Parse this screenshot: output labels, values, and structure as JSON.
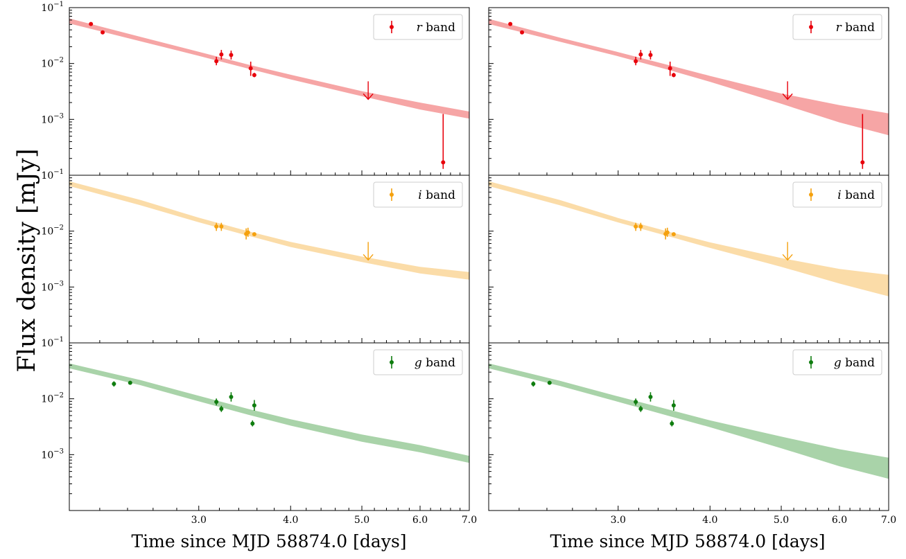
{
  "chart_data": {
    "type": "scatter",
    "ylabel": "Flux density [mJy]",
    "xlabel": "Time since MJD 58874.0 [days]",
    "x_scale": "log",
    "y_scale": "log",
    "xlim": [
      2.0,
      7.0
    ],
    "ylim": [
      0.0001,
      0.1
    ],
    "x_ticks": [
      3.0,
      4.0,
      5.0,
      6.0,
      7.0
    ],
    "x_tick_labels": [
      "3.0",
      "4.0",
      "5.0",
      "6.0",
      "7.0"
    ],
    "y_ticks": [
      {
        "value": 0.1,
        "base": "10",
        "exp": "−1"
      },
      {
        "value": 0.01,
        "base": "10",
        "exp": "−2"
      },
      {
        "value": 0.001,
        "base": "10",
        "exp": "−3"
      }
    ],
    "legend_position": "top-right",
    "colors": {
      "r": "#e8000b",
      "i": "#f5a10e",
      "g": "#0f7d0f",
      "r_band": "#f6a5a5",
      "i_band": "#fbdca8",
      "g_band": "#a9d3a9"
    },
    "columns": [
      {
        "rows": [
          {
            "band": "r",
            "legend": {
              "italic": "r",
              "rest": " band"
            },
            "points": [
              {
                "x": 2.14,
                "y": 0.051,
                "lo": 0.048,
                "hi": 0.054
              },
              {
                "x": 2.22,
                "y": 0.036,
                "lo": 0.034,
                "hi": 0.038
              },
              {
                "x": 3.17,
                "y": 0.011,
                "lo": 0.0093,
                "hi": 0.0132
              },
              {
                "x": 3.22,
                "y": 0.0145,
                "lo": 0.0118,
                "hi": 0.0175
              },
              {
                "x": 3.32,
                "y": 0.0142,
                "lo": 0.0118,
                "hi": 0.017
              },
              {
                "x": 3.53,
                "y": 0.0082,
                "lo": 0.006,
                "hi": 0.0108
              },
              {
                "x": 3.57,
                "y": 0.0062,
                "lo": 0.0057,
                "hi": 0.0068
              },
              {
                "x": 6.45,
                "y": 0.00017,
                "lo": 0.00013,
                "hi": 0.00125
              }
            ],
            "upper_limits": [
              {
                "x": 5.1,
                "y": 0.0048
              }
            ],
            "model_band": [
              {
                "x": 2.0,
                "lo": 0.052,
                "hi": 0.064
              },
              {
                "x": 2.5,
                "lo": 0.025,
                "hi": 0.03
              },
              {
                "x": 3.0,
                "lo": 0.0137,
                "hi": 0.0162
              },
              {
                "x": 3.5,
                "lo": 0.0081,
                "hi": 0.0096
              },
              {
                "x": 4.0,
                "lo": 0.0052,
                "hi": 0.0063
              },
              {
                "x": 5.0,
                "lo": 0.0026,
                "hi": 0.0032
              },
              {
                "x": 6.0,
                "lo": 0.0015,
                "hi": 0.002
              },
              {
                "x": 7.0,
                "lo": 0.00103,
                "hi": 0.00138
              }
            ]
          },
          {
            "band": "i",
            "legend": {
              "italic": "i",
              "rest": " band"
            },
            "points": [
              {
                "x": 3.17,
                "y": 0.0121,
                "lo": 0.0101,
                "hi": 0.0141
              },
              {
                "x": 3.22,
                "y": 0.0121,
                "lo": 0.0101,
                "hi": 0.0141
              },
              {
                "x": 3.48,
                "y": 0.0089,
                "lo": 0.0071,
                "hi": 0.0112
              },
              {
                "x": 3.5,
                "y": 0.0095,
                "lo": 0.0079,
                "hi": 0.0115
              },
              {
                "x": 3.57,
                "y": 0.0088,
                "lo": 0.0083,
                "hi": 0.0093
              }
            ],
            "upper_limits": [
              {
                "x": 5.1,
                "y": 0.0064
              }
            ],
            "model_band": [
              {
                "x": 2.0,
                "lo": 0.064,
                "hi": 0.078
              },
              {
                "x": 2.5,
                "lo": 0.029,
                "hi": 0.036
              },
              {
                "x": 3.0,
                "lo": 0.0144,
                "hi": 0.0174
              },
              {
                "x": 3.5,
                "lo": 0.0083,
                "hi": 0.01
              },
              {
                "x": 4.0,
                "lo": 0.0052,
                "hi": 0.0064
              },
              {
                "x": 5.0,
                "lo": 0.0028,
                "hi": 0.0035
              },
              {
                "x": 6.0,
                "lo": 0.00175,
                "hi": 0.0023
              },
              {
                "x": 7.0,
                "lo": 0.00135,
                "hi": 0.00185
              }
            ]
          },
          {
            "band": "g",
            "legend": {
              "italic": "g",
              "rest": " band"
            },
            "points": [
              {
                "x": 2.3,
                "y": 0.0185,
                "lo": 0.0165,
                "hi": 0.0205
              },
              {
                "x": 2.42,
                "y": 0.0193,
                "lo": 0.0178,
                "hi": 0.0209
              },
              {
                "x": 3.17,
                "y": 0.0088,
                "lo": 0.0076,
                "hi": 0.0101
              },
              {
                "x": 3.22,
                "y": 0.0066,
                "lo": 0.0058,
                "hi": 0.0075
              },
              {
                "x": 3.32,
                "y": 0.0108,
                "lo": 0.0089,
                "hi": 0.0131
              },
              {
                "x": 3.55,
                "y": 0.0036,
                "lo": 0.0032,
                "hi": 0.0041
              },
              {
                "x": 3.57,
                "y": 0.0076,
                "lo": 0.0061,
                "hi": 0.0095
              }
            ],
            "upper_limits": [],
            "model_band": [
              {
                "x": 2.0,
                "lo": 0.035,
                "hi": 0.043
              },
              {
                "x": 2.5,
                "lo": 0.0175,
                "hi": 0.0215
              },
              {
                "x": 3.0,
                "lo": 0.009,
                "hi": 0.0113
              },
              {
                "x": 3.5,
                "lo": 0.0052,
                "hi": 0.0066
              },
              {
                "x": 4.0,
                "lo": 0.0033,
                "hi": 0.0043
              },
              {
                "x": 5.0,
                "lo": 0.0017,
                "hi": 0.0023
              },
              {
                "x": 6.0,
                "lo": 0.0011,
                "hi": 0.00148
              },
              {
                "x": 7.0,
                "lo": 0.00071,
                "hi": 0.00095
              }
            ]
          }
        ]
      },
      {
        "rows": [
          {
            "band": "r",
            "legend": {
              "italic": "r",
              "rest": " band"
            },
            "points": [
              {
                "x": 2.14,
                "y": 0.051,
                "lo": 0.048,
                "hi": 0.054
              },
              {
                "x": 2.22,
                "y": 0.036,
                "lo": 0.034,
                "hi": 0.038
              },
              {
                "x": 3.17,
                "y": 0.011,
                "lo": 0.0093,
                "hi": 0.0132
              },
              {
                "x": 3.22,
                "y": 0.0145,
                "lo": 0.0118,
                "hi": 0.0175
              },
              {
                "x": 3.32,
                "y": 0.0142,
                "lo": 0.0118,
                "hi": 0.017
              },
              {
                "x": 3.53,
                "y": 0.0082,
                "lo": 0.006,
                "hi": 0.0108
              },
              {
                "x": 3.57,
                "y": 0.0062,
                "lo": 0.0057,
                "hi": 0.0068
              },
              {
                "x": 6.45,
                "y": 0.00017,
                "lo": 0.00013,
                "hi": 0.00125
              }
            ],
            "upper_limits": [
              {
                "x": 5.1,
                "y": 0.0048
              }
            ],
            "model_band": [
              {
                "x": 2.0,
                "lo": 0.051,
                "hi": 0.063
              },
              {
                "x": 2.5,
                "lo": 0.0245,
                "hi": 0.029
              },
              {
                "x": 3.0,
                "lo": 0.0135,
                "hi": 0.016
              },
              {
                "x": 3.5,
                "lo": 0.0078,
                "hi": 0.0095
              },
              {
                "x": 4.0,
                "lo": 0.0047,
                "hi": 0.006
              },
              {
                "x": 5.0,
                "lo": 0.0019,
                "hi": 0.0029
              },
              {
                "x": 6.0,
                "lo": 0.00088,
                "hi": 0.0018
              },
              {
                "x": 7.0,
                "lo": 0.00052,
                "hi": 0.00128
              }
            ]
          },
          {
            "band": "i",
            "legend": {
              "italic": "i",
              "rest": " band"
            },
            "points": [
              {
                "x": 3.17,
                "y": 0.0121,
                "lo": 0.0101,
                "hi": 0.0141
              },
              {
                "x": 3.22,
                "y": 0.0121,
                "lo": 0.0101,
                "hi": 0.0141
              },
              {
                "x": 3.48,
                "y": 0.0089,
                "lo": 0.0071,
                "hi": 0.0112
              },
              {
                "x": 3.5,
                "y": 0.0095,
                "lo": 0.0079,
                "hi": 0.0115
              },
              {
                "x": 3.57,
                "y": 0.0088,
                "lo": 0.0083,
                "hi": 0.0093
              }
            ],
            "upper_limits": [
              {
                "x": 5.1,
                "y": 0.0064
              }
            ],
            "model_band": [
              {
                "x": 2.0,
                "lo": 0.064,
                "hi": 0.078
              },
              {
                "x": 2.5,
                "lo": 0.029,
                "hi": 0.036
              },
              {
                "x": 3.0,
                "lo": 0.0143,
                "hi": 0.0172
              },
              {
                "x": 3.5,
                "lo": 0.0082,
                "hi": 0.0099
              },
              {
                "x": 4.0,
                "lo": 0.005,
                "hi": 0.0063
              },
              {
                "x": 5.0,
                "lo": 0.0023,
                "hi": 0.0033
              },
              {
                "x": 6.0,
                "lo": 0.00115,
                "hi": 0.0021
              },
              {
                "x": 7.0,
                "lo": 0.00068,
                "hi": 0.00165
              }
            ]
          },
          {
            "band": "g",
            "legend": {
              "italic": "g",
              "rest": " band"
            },
            "points": [
              {
                "x": 2.3,
                "y": 0.0185,
                "lo": 0.0165,
                "hi": 0.0205
              },
              {
                "x": 2.42,
                "y": 0.0193,
                "lo": 0.0178,
                "hi": 0.0209
              },
              {
                "x": 3.17,
                "y": 0.0088,
                "lo": 0.0076,
                "hi": 0.0101
              },
              {
                "x": 3.22,
                "y": 0.0066,
                "lo": 0.0058,
                "hi": 0.0075
              },
              {
                "x": 3.32,
                "y": 0.0108,
                "lo": 0.0089,
                "hi": 0.0131
              },
              {
                "x": 3.55,
                "y": 0.0036,
                "lo": 0.0032,
                "hi": 0.0041
              },
              {
                "x": 3.57,
                "y": 0.0076,
                "lo": 0.0061,
                "hi": 0.0095
              }
            ],
            "upper_limits": [],
            "model_band": [
              {
                "x": 2.0,
                "lo": 0.035,
                "hi": 0.043
              },
              {
                "x": 2.5,
                "lo": 0.017,
                "hi": 0.021
              },
              {
                "x": 3.0,
                "lo": 0.0088,
                "hi": 0.011
              },
              {
                "x": 3.5,
                "lo": 0.005,
                "hi": 0.0065
              },
              {
                "x": 4.0,
                "lo": 0.0031,
                "hi": 0.0041
              },
              {
                "x": 5.0,
                "lo": 0.0013,
                "hi": 0.0021
              },
              {
                "x": 6.0,
                "lo": 0.00062,
                "hi": 0.00125
              },
              {
                "x": 7.0,
                "lo": 0.00037,
                "hi": 0.00088
              }
            ]
          }
        ]
      }
    ]
  }
}
